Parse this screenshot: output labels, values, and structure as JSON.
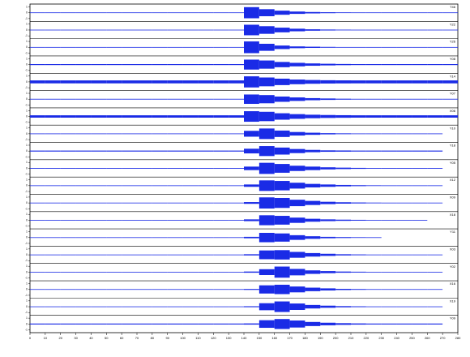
{
  "chart_data": {
    "type": "seismogram",
    "x": [
      0,
      10,
      20,
      30,
      40,
      50,
      60,
      70,
      80,
      90,
      100,
      110,
      120,
      130,
      140,
      150,
      160,
      170,
      180,
      190,
      200,
      210,
      220,
      230,
      240,
      250,
      260,
      270
    ],
    "xlim": [
      0,
      280
    ],
    "xticks": [
      0,
      10,
      20,
      30,
      40,
      50,
      60,
      70,
      80,
      90,
      100,
      110,
      120,
      130,
      140,
      150,
      160,
      170,
      180,
      190,
      200,
      210,
      220,
      230,
      240,
      250,
      260,
      270,
      280
    ],
    "ylim": [
      -1.2,
      1.2
    ],
    "yticks": [
      -1,
      0,
      1
    ],
    "color": "#1a2be6",
    "series": [
      {
        "name": "T46",
        "values": [
          0.05,
          0.05,
          0.05,
          0.05,
          0.05,
          0.05,
          0.05,
          0.05,
          0.05,
          0.05,
          0.05,
          0.05,
          0.05,
          0.05,
          0.95,
          0.6,
          0.35,
          0.2,
          0.12,
          0.08,
          0.06,
          0.05,
          0.05,
          0.05,
          0.05,
          0.05,
          0.05,
          0.05
        ]
      },
      {
        "name": "Y22",
        "values": [
          0.05,
          0.05,
          0.05,
          0.05,
          0.05,
          0.05,
          0.05,
          0.05,
          0.05,
          0.05,
          0.05,
          0.05,
          0.05,
          0.05,
          0.9,
          0.65,
          0.4,
          0.22,
          0.12,
          0.08,
          0.06,
          0.05,
          0.05,
          0.05,
          0.05,
          0.05,
          0.05,
          0.05
        ]
      },
      {
        "name": "Y26",
        "values": [
          0.05,
          0.05,
          0.05,
          0.05,
          0.05,
          0.05,
          0.05,
          0.05,
          0.05,
          0.05,
          0.05,
          0.05,
          0.05,
          0.05,
          1.0,
          0.6,
          0.3,
          0.15,
          0.1,
          0.07,
          0.05,
          0.05,
          0.05,
          0.05,
          0.05,
          0.05,
          0.05,
          0.05
        ]
      },
      {
        "name": "Y08",
        "values": [
          0.08,
          0.08,
          0.08,
          0.08,
          0.08,
          0.08,
          0.08,
          0.08,
          0.08,
          0.08,
          0.08,
          0.08,
          0.08,
          0.08,
          0.85,
          0.7,
          0.45,
          0.3,
          0.2,
          0.14,
          0.1,
          0.08,
          0.08,
          0.08,
          0.08,
          0.08,
          0.08,
          0.08
        ]
      },
      {
        "name": "Y14",
        "values": [
          0.25,
          0.25,
          0.25,
          0.25,
          0.25,
          0.25,
          0.25,
          0.25,
          0.25,
          0.25,
          0.25,
          0.25,
          0.25,
          0.25,
          0.95,
          0.75,
          0.55,
          0.4,
          0.32,
          0.28,
          0.26,
          0.25,
          0.25,
          0.25,
          0.25,
          0.25,
          0.25,
          0.25
        ]
      },
      {
        "name": "Y07",
        "values": [
          0.06,
          0.06,
          0.06,
          0.06,
          0.06,
          0.06,
          0.06,
          0.06,
          0.06,
          0.06,
          0.06,
          0.06,
          0.06,
          0.06,
          0.8,
          0.7,
          0.45,
          0.3,
          0.18,
          0.12,
          0.08,
          0.06,
          0.06,
          0.06,
          0.06,
          0.06,
          0.06,
          0.06
        ]
      },
      {
        "name": "X06",
        "values": [
          0.2,
          0.2,
          0.2,
          0.2,
          0.2,
          0.2,
          0.2,
          0.2,
          0.2,
          0.2,
          0.2,
          0.2,
          0.2,
          0.2,
          0.9,
          0.8,
          0.55,
          0.4,
          0.3,
          0.25,
          0.22,
          0.2,
          0.2,
          0.2,
          0.2,
          0.2,
          0.2,
          0.2
        ]
      },
      {
        "name": "Y10",
        "values": [
          0.05,
          0.05,
          0.05,
          0.05,
          0.05,
          0.05,
          0.05,
          0.05,
          0.05,
          0.05,
          0.05,
          0.05,
          0.05,
          0.05,
          0.5,
          0.9,
          0.55,
          0.3,
          0.18,
          0.1,
          0.07,
          0.05,
          0.05,
          0.05,
          0.05,
          0.05,
          0.05,
          null
        ]
      },
      {
        "name": "Y18",
        "values": [
          0.08,
          0.08,
          0.08,
          0.08,
          0.08,
          0.08,
          0.08,
          0.08,
          0.08,
          0.08,
          0.08,
          0.08,
          0.08,
          0.08,
          0.4,
          0.85,
          0.6,
          0.35,
          0.2,
          0.12,
          0.1,
          0.08,
          0.08,
          0.08,
          0.08,
          0.08,
          0.08,
          null
        ]
      },
      {
        "name": "Y05",
        "values": [
          0.06,
          0.06,
          0.06,
          0.06,
          0.06,
          0.06,
          0.06,
          0.06,
          0.06,
          0.06,
          0.06,
          0.06,
          0.06,
          0.06,
          0.3,
          0.95,
          0.75,
          0.45,
          0.3,
          0.18,
          0.12,
          0.08,
          0.06,
          0.06,
          0.06,
          0.06,
          0.06,
          null
        ]
      },
      {
        "name": "X12",
        "values": [
          0.05,
          0.05,
          0.05,
          0.05,
          0.05,
          0.05,
          0.05,
          0.05,
          0.05,
          0.05,
          0.05,
          0.05,
          0.05,
          0.05,
          0.2,
          0.9,
          0.8,
          0.5,
          0.3,
          0.2,
          0.12,
          0.08,
          0.06,
          0.05,
          0.05,
          0.05,
          0.05,
          null
        ]
      },
      {
        "name": "X09",
        "values": [
          0.05,
          0.05,
          0.05,
          0.05,
          0.05,
          0.05,
          0.05,
          0.05,
          0.05,
          0.05,
          0.05,
          0.05,
          0.05,
          0.05,
          0.15,
          0.95,
          0.85,
          0.55,
          0.35,
          0.2,
          0.12,
          0.08,
          0.06,
          0.05,
          0.05,
          0.05,
          0.05,
          null
        ]
      },
      {
        "name": "X18",
        "values": [
          0.05,
          0.05,
          0.05,
          0.05,
          0.05,
          0.05,
          0.05,
          0.05,
          0.05,
          0.05,
          0.05,
          0.05,
          0.05,
          0.05,
          0.15,
          0.85,
          0.75,
          0.45,
          0.25,
          0.15,
          0.1,
          0.07,
          0.05,
          0.05,
          0.05,
          0.05,
          null,
          null
        ]
      },
      {
        "name": "Y11",
        "values": [
          0.05,
          0.05,
          0.05,
          0.05,
          0.05,
          0.05,
          0.05,
          0.05,
          0.05,
          0.05,
          0.05,
          0.05,
          0.05,
          0.05,
          0.12,
          0.8,
          0.7,
          0.4,
          0.22,
          0.12,
          0.08,
          0.06,
          0.05,
          null,
          null,
          null,
          null,
          null
        ]
      },
      {
        "name": "X03",
        "values": [
          0.05,
          0.05,
          0.05,
          0.05,
          0.05,
          0.05,
          0.05,
          0.05,
          0.05,
          0.05,
          0.05,
          0.05,
          0.05,
          0.05,
          0.1,
          0.75,
          0.8,
          0.5,
          0.3,
          0.18,
          0.1,
          0.07,
          0.05,
          0.05,
          0.05,
          0.05,
          0.05,
          null
        ]
      },
      {
        "name": "Y02",
        "values": [
          0.05,
          0.05,
          0.05,
          0.05,
          0.05,
          0.05,
          0.05,
          0.05,
          0.05,
          0.05,
          0.05,
          0.05,
          0.05,
          0.05,
          0.1,
          0.5,
          0.95,
          0.55,
          0.3,
          0.18,
          0.1,
          0.07,
          0.05,
          0.05,
          0.05,
          0.05,
          0.05,
          null
        ]
      },
      {
        "name": "X16",
        "values": [
          0.05,
          0.05,
          0.05,
          0.05,
          0.05,
          0.05,
          0.05,
          0.05,
          0.05,
          0.05,
          0.05,
          0.05,
          0.05,
          0.05,
          0.08,
          0.7,
          0.8,
          0.5,
          0.3,
          0.18,
          0.1,
          0.07,
          0.05,
          0.05,
          0.05,
          0.05,
          0.05,
          null
        ]
      },
      {
        "name": "X19",
        "values": [
          0.05,
          0.05,
          0.05,
          0.05,
          0.05,
          0.05,
          0.05,
          0.05,
          0.05,
          0.05,
          0.05,
          0.05,
          0.05,
          0.05,
          0.08,
          0.6,
          0.9,
          0.55,
          0.3,
          0.18,
          0.1,
          0.07,
          0.05,
          0.05,
          0.05,
          0.05,
          0.05,
          null
        ]
      },
      {
        "name": "Y09",
        "values": [
          0.08,
          0.08,
          0.08,
          0.08,
          0.08,
          0.08,
          0.08,
          0.08,
          0.08,
          0.08,
          0.08,
          0.08,
          0.08,
          0.08,
          0.1,
          0.65,
          0.85,
          0.6,
          0.35,
          0.22,
          0.14,
          0.1,
          0.08,
          0.08,
          0.08,
          0.08,
          0.08,
          null
        ]
      }
    ]
  }
}
